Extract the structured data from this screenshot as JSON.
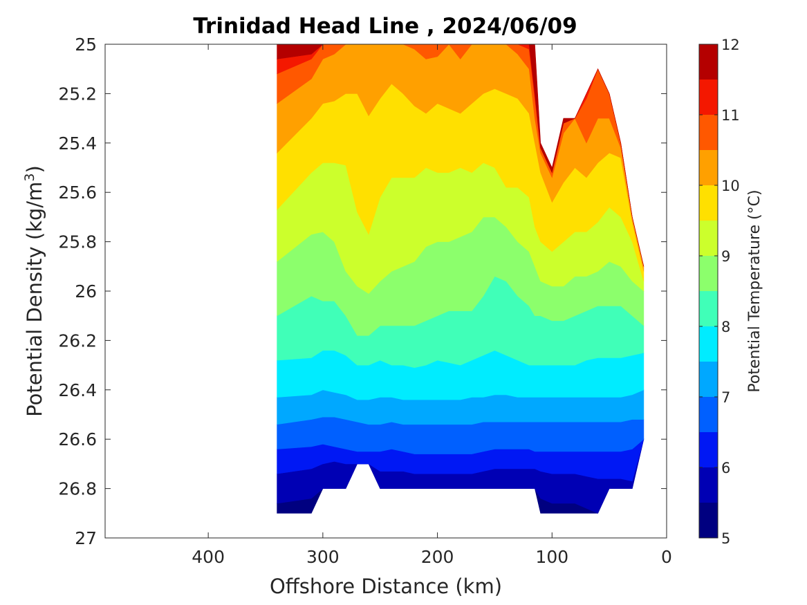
{
  "chart_data": {
    "type": "filled-contour",
    "title": "Trinidad Head Line , 2024/06/09",
    "xlabel": "Offshore Distance (km)",
    "ylabel_main": "Potential Density (kg/m",
    "ylabel_sup": "3",
    "ylabel_end": ")",
    "x_reversed": true,
    "y_reversed": true,
    "xlim": [
      0,
      490
    ],
    "ylim": [
      25,
      27
    ],
    "x_ticks": [
      400,
      300,
      200,
      100,
      0
    ],
    "y_ticks": [
      "25",
      "25.2",
      "25.4",
      "25.6",
      "25.8",
      "26",
      "26.2",
      "26.4",
      "26.6",
      "26.8",
      "27"
    ],
    "colorbar": {
      "label": "Potential Temperature (°C)",
      "range": [
        5,
        12
      ],
      "step": 0.5,
      "ticks": [
        5,
        6,
        7,
        8,
        9,
        10,
        11,
        12
      ],
      "colors": [
        "#000080",
        "#0000b4",
        "#0018f4",
        "#0060ff",
        "#00a8ff",
        "#00ecff",
        "#40ffb8",
        "#8cff6c",
        "#ccff2c",
        "#ffe000",
        "#ffa000",
        "#ff5800",
        "#f41800",
        "#b40000"
      ]
    },
    "station_x": [
      340,
      310,
      300,
      290,
      280,
      270,
      260,
      250,
      240,
      230,
      220,
      210,
      200,
      190,
      180,
      170,
      160,
      150,
      140,
      130,
      120,
      115,
      110,
      100,
      90,
      80,
      70,
      60,
      50,
      40,
      30,
      20
    ],
    "data_bounds": {
      "top": [
        25,
        25,
        25,
        25,
        25,
        25,
        25,
        25,
        25,
        25,
        25,
        25,
        25,
        25,
        25,
        25,
        25,
        25,
        25,
        25,
        25,
        25,
        25.4,
        25.5,
        25.3,
        25.3,
        25.2,
        25.1,
        25.2,
        25.4,
        25.7,
        25.9
      ],
      "bottom": [
        26.9,
        26.9,
        26.8,
        26.8,
        26.8,
        26.7,
        26.7,
        26.8,
        26.8,
        26.8,
        26.8,
        26.8,
        26.8,
        26.8,
        26.8,
        26.8,
        26.8,
        26.8,
        26.8,
        26.8,
        26.8,
        26.8,
        26.9,
        26.9,
        26.9,
        26.9,
        26.9,
        26.9,
        26.8,
        26.8,
        26.8,
        26.6
      ]
    },
    "isotherm_density": {
      "11.5": [
        25.06,
        25.04,
        24.98,
        24.98,
        24.98,
        24.98,
        24.98,
        24.98,
        24.98,
        24.98,
        24.98,
        24.98,
        24.98,
        24.98,
        24.98,
        24.98,
        24.98,
        24.98,
        24.98,
        24.98,
        25.0,
        25.2,
        25.42,
        25.52,
        25.32,
        25.3,
        25.2,
        25.1,
        25.2,
        25.4,
        25.7,
        25.9
      ],
      "11.0": [
        25.12,
        25.06,
        25.0,
        25.0,
        25.0,
        25.0,
        25.0,
        25.0,
        25.0,
        25.0,
        25.0,
        25.0,
        25.0,
        25.0,
        25.0,
        25.0,
        25.0,
        25.0,
        25.0,
        25.0,
        25.02,
        25.22,
        25.42,
        25.52,
        25.32,
        25.3,
        25.22,
        25.1,
        25.2,
        25.4,
        25.7,
        25.9
      ],
      "10.5": [
        25.24,
        25.14,
        25.06,
        25.04,
        25.0,
        24.98,
        24.98,
        25.0,
        25.0,
        25.0,
        25.02,
        25.06,
        25.05,
        25.0,
        25.06,
        25.0,
        24.98,
        24.98,
        25.0,
        25.04,
        25.1,
        25.3,
        25.44,
        25.54,
        25.36,
        25.3,
        25.4,
        25.3,
        25.3,
        25.42,
        25.7,
        25.9
      ],
      "10.0": [
        25.44,
        25.3,
        25.24,
        25.23,
        25.2,
        25.2,
        25.29,
        25.22,
        25.16,
        25.2,
        25.25,
        25.28,
        25.24,
        25.26,
        25.28,
        25.24,
        25.2,
        25.18,
        25.2,
        25.22,
        25.28,
        25.4,
        25.52,
        25.64,
        25.56,
        25.5,
        25.54,
        25.48,
        25.44,
        25.46,
        25.72,
        25.92
      ],
      "9.5": [
        25.67,
        25.52,
        25.48,
        25.48,
        25.49,
        25.68,
        25.77,
        25.62,
        25.54,
        25.54,
        25.54,
        25.5,
        25.52,
        25.52,
        25.5,
        25.52,
        25.48,
        25.5,
        25.58,
        25.58,
        25.62,
        25.74,
        25.8,
        25.84,
        25.8,
        25.76,
        25.76,
        25.72,
        25.66,
        25.7,
        25.8,
        25.96
      ],
      "9.0": [
        25.88,
        25.77,
        25.76,
        25.8,
        25.92,
        25.98,
        26.01,
        25.96,
        25.92,
        25.9,
        25.88,
        25.82,
        25.8,
        25.8,
        25.78,
        25.76,
        25.7,
        25.7,
        25.74,
        25.8,
        25.84,
        25.9,
        25.96,
        25.98,
        25.98,
        25.94,
        25.94,
        25.92,
        25.88,
        25.9,
        25.96,
        26.0
      ],
      "8.5": [
        26.1,
        26.02,
        26.04,
        26.04,
        26.1,
        26.18,
        26.18,
        26.14,
        26.14,
        26.14,
        26.14,
        26.12,
        26.1,
        26.08,
        26.08,
        26.08,
        26.02,
        25.94,
        25.96,
        26.02,
        26.06,
        26.1,
        26.1,
        26.12,
        26.12,
        26.1,
        26.08,
        26.06,
        26.06,
        26.06,
        26.1,
        26.14
      ],
      "8.0": [
        26.28,
        26.27,
        26.24,
        26.24,
        26.26,
        26.3,
        26.3,
        26.28,
        26.3,
        26.3,
        26.31,
        26.3,
        26.28,
        26.29,
        26.3,
        26.28,
        26.26,
        26.24,
        26.26,
        26.28,
        26.3,
        26.3,
        26.3,
        26.3,
        26.3,
        26.3,
        26.28,
        26.27,
        26.27,
        26.27,
        26.26,
        26.25
      ],
      "7.5": [
        26.43,
        26.42,
        26.4,
        26.41,
        26.42,
        26.44,
        26.44,
        26.43,
        26.43,
        26.44,
        26.44,
        26.44,
        26.44,
        26.44,
        26.44,
        26.43,
        26.43,
        26.42,
        26.42,
        26.43,
        26.43,
        26.43,
        26.43,
        26.43,
        26.43,
        26.43,
        26.43,
        26.43,
        26.43,
        26.43,
        26.42,
        26.4
      ],
      "7.0": [
        26.54,
        26.52,
        26.51,
        26.51,
        26.52,
        26.53,
        26.54,
        26.54,
        26.53,
        26.54,
        26.54,
        26.54,
        26.54,
        26.54,
        26.54,
        26.54,
        26.53,
        26.53,
        26.53,
        26.53,
        26.53,
        26.53,
        26.53,
        26.53,
        26.53,
        26.53,
        26.53,
        26.53,
        26.53,
        26.53,
        26.52,
        26.52
      ],
      "6.5": [
        26.64,
        26.63,
        26.62,
        26.63,
        26.64,
        26.65,
        26.65,
        26.65,
        26.64,
        26.65,
        26.66,
        26.66,
        26.66,
        26.66,
        26.66,
        26.66,
        26.65,
        26.64,
        26.64,
        26.64,
        26.64,
        26.65,
        26.65,
        26.65,
        26.65,
        26.65,
        26.65,
        26.65,
        26.65,
        26.65,
        26.64,
        26.6
      ],
      "6.0": [
        26.74,
        26.72,
        26.7,
        26.69,
        26.7,
        26.7,
        26.7,
        26.73,
        26.73,
        26.73,
        26.74,
        26.74,
        26.74,
        26.74,
        26.74,
        26.74,
        26.73,
        26.72,
        26.72,
        26.72,
        26.72,
        26.72,
        26.73,
        26.74,
        26.74,
        26.74,
        26.75,
        26.76,
        26.76,
        26.76,
        26.77,
        26.6
      ],
      "5.5": [
        26.86,
        26.84,
        26.8,
        26.8,
        26.8,
        26.7,
        26.7,
        26.8,
        26.8,
        26.8,
        26.8,
        26.8,
        26.8,
        26.8,
        26.8,
        26.8,
        26.8,
        26.8,
        26.8,
        26.8,
        26.8,
        26.82,
        26.84,
        26.86,
        26.86,
        26.86,
        26.88,
        26.9,
        26.8,
        26.8,
        26.8,
        26.6
      ]
    }
  }
}
